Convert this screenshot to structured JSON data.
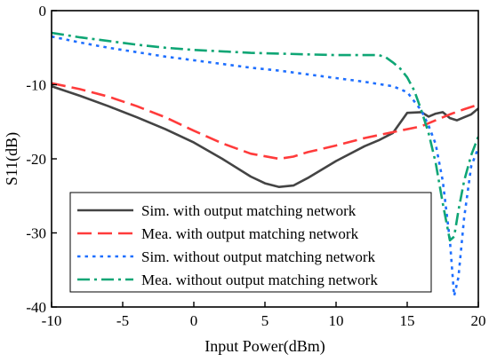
{
  "chart_data": {
    "type": "line",
    "xlabel": "Input Power(dBm)",
    "ylabel": "S11(dB)",
    "xlim": [
      -10,
      20
    ],
    "ylim": [
      -40,
      0
    ],
    "xticks": [
      -10,
      -5,
      0,
      5,
      10,
      15,
      20
    ],
    "yticks": [
      0,
      -10,
      -20,
      -30,
      -40
    ],
    "xtick_labels": [
      "-10",
      "-5",
      "0",
      "5",
      "10",
      "15",
      "20"
    ],
    "ytick_labels": [
      "0",
      "-10",
      "-20",
      "-30",
      "-40"
    ],
    "grid": false,
    "legend_position": "lower-left",
    "series": [
      {
        "name": "Sim. with output matching network",
        "color": "#444444",
        "dash": "solid",
        "x": [
          -10,
          -8,
          -6,
          -4,
          -2,
          0,
          2,
          4,
          5,
          6,
          7,
          8,
          10,
          12,
          13,
          14,
          15,
          16,
          16.5,
          17,
          17.5,
          18,
          18.5,
          19,
          19.5,
          20
        ],
        "y": [
          -10.2,
          -11.5,
          -12.9,
          -14.4,
          -16,
          -17.8,
          -20,
          -22.4,
          -23.3,
          -23.8,
          -23.6,
          -22.6,
          -20.3,
          -18.3,
          -17.5,
          -16.5,
          -13.8,
          -13.7,
          -14.3,
          -13.9,
          -13.7,
          -14.5,
          -14.8,
          -14.4,
          -14,
          -13.2
        ]
      },
      {
        "name": "Mea. with output matching network",
        "color": "#ff3b3b",
        "dash": "long-dash",
        "x": [
          -10,
          -8,
          -6,
          -4,
          -2,
          0,
          2,
          4,
          6,
          7,
          8,
          10,
          12,
          14,
          16,
          17,
          18,
          19,
          20
        ],
        "y": [
          -9.8,
          -10.6,
          -11.6,
          -12.9,
          -14.4,
          -16.2,
          -17.9,
          -19.3,
          -20,
          -19.7,
          -19.1,
          -18.2,
          -17.2,
          -16.4,
          -15.6,
          -14.8,
          -14,
          -13.3,
          -12.7
        ]
      },
      {
        "name": "Sim. without output matching network",
        "color": "#1e6fff",
        "dash": "dot",
        "x": [
          -10,
          -8,
          -6,
          -4,
          -2,
          0,
          2,
          4,
          6,
          8,
          10,
          12,
          13,
          14,
          15,
          16,
          16.5,
          17,
          17.5,
          18,
          18.3,
          18.6,
          19,
          19.5,
          20
        ],
        "y": [
          -3.5,
          -4.3,
          -5,
          -5.6,
          -6.2,
          -6.7,
          -7.2,
          -7.7,
          -8.1,
          -8.6,
          -9.1,
          -9.6,
          -9.9,
          -10.2,
          -11,
          -13.5,
          -15.5,
          -18,
          -23,
          -31,
          -38.5,
          -36,
          -28,
          -21,
          -18.5
        ]
      },
      {
        "name": "Mea. without output matching network",
        "color": "#0fa675",
        "dash": "dash-dot",
        "x": [
          -10,
          -8,
          -6,
          -4,
          -2,
          0,
          2,
          4,
          6,
          8,
          10,
          12,
          13,
          13.5,
          14,
          14.5,
          15,
          15.5,
          16,
          16.5,
          17,
          17.5,
          18,
          18.3,
          18.6,
          19,
          19.5,
          20
        ],
        "y": [
          -3,
          -3.6,
          -4.1,
          -4.6,
          -5,
          -5.3,
          -5.5,
          -5.7,
          -5.8,
          -5.9,
          -6,
          -6,
          -6,
          -6.3,
          -7,
          -7.8,
          -9,
          -10.8,
          -13.5,
          -16.5,
          -20.5,
          -26,
          -31,
          -30.5,
          -27,
          -23,
          -19.5,
          -17
        ]
      }
    ]
  }
}
